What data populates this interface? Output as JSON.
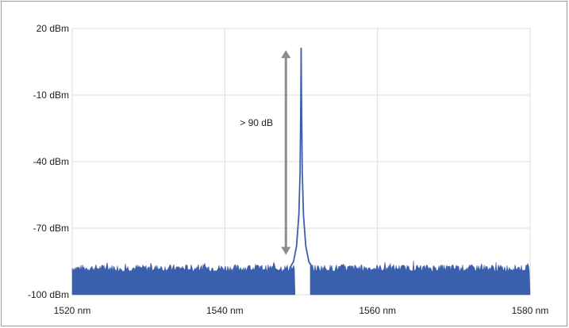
{
  "chart_data": {
    "type": "line",
    "title": "",
    "xlabel": "",
    "ylabel": "",
    "xlim": [
      1520,
      1580
    ],
    "ylim": [
      -100,
      20
    ],
    "x_ticks": [
      1520,
      1540,
      1560,
      1580
    ],
    "x_tick_labels": [
      "1520 nm",
      "1540 nm",
      "1560 nm",
      "1580 nm"
    ],
    "y_ticks": [
      20,
      -10,
      -40,
      -70,
      -100
    ],
    "y_tick_labels": [
      "20 dBm",
      "-10 dBm",
      "-40 dBm",
      "-70 dBm",
      "-100 dBm"
    ],
    "grid": true,
    "series": [
      {
        "color": "#3a5fad",
        "noise_floor": {
          "x_range": [
            1520,
            1580
          ],
          "level_dBm": -88
        },
        "peak": {
          "x": 1550,
          "y": 11
        },
        "gap_range": [
          1549.2,
          1551.2
        ],
        "x": [
          1548.5,
          1549.0,
          1549.4,
          1549.7,
          1549.85,
          1549.95,
          1550.0,
          1550.05,
          1550.15,
          1550.3,
          1550.6,
          1551.0,
          1551.5
        ],
        "y": [
          -88,
          -85,
          -78,
          -64,
          -45,
          -15,
          11,
          -15,
          -45,
          -64,
          -78,
          -85,
          -88
        ]
      }
    ],
    "annotations": [
      {
        "text": "> 90 dB",
        "type": "double-arrow",
        "x": 1548,
        "y_from": 11,
        "y_to": -82
      }
    ]
  },
  "colors": {
    "series": "#3a5fad",
    "grid": "#dcdcdc",
    "arrow": "#8c8c8c",
    "frame": "#9a9a9a"
  }
}
